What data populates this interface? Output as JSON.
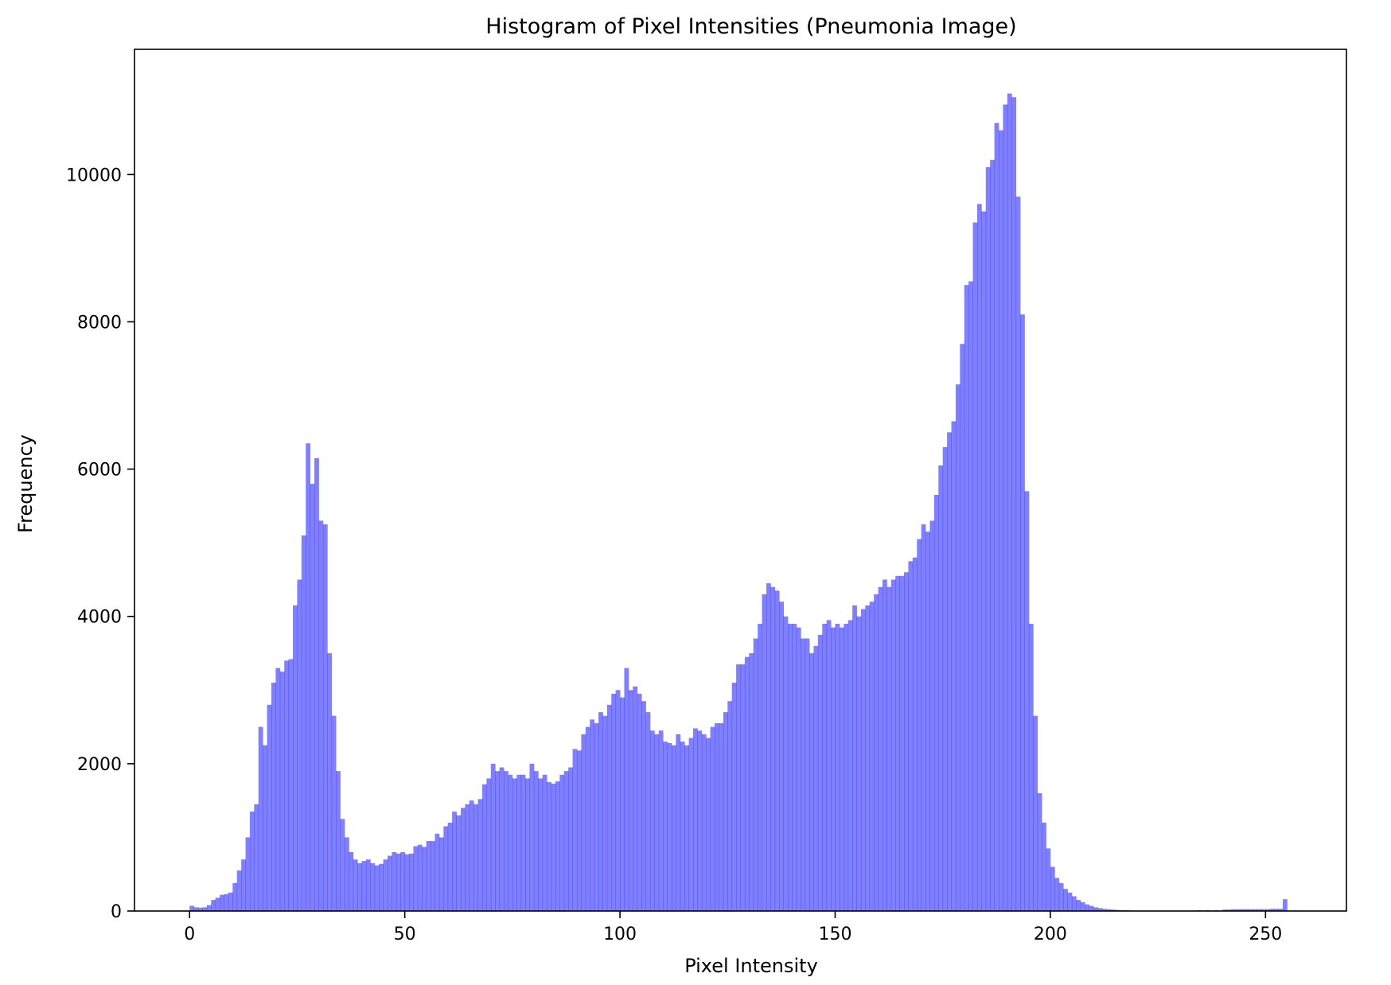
{
  "chart_data": {
    "type": "bar",
    "title": "Histogram of Pixel Intensities (Pneumonia Image)",
    "xlabel": "Pixel Intensity",
    "ylabel": "Frequency",
    "xlim": [
      -12.8,
      268.8
    ],
    "ylim": [
      0,
      11700
    ],
    "grid": false,
    "bar_color": "#0000ff",
    "bar_opacity": 0.5,
    "bin_width": 1,
    "x_ticks": [
      0,
      50,
      100,
      150,
      200,
      250
    ],
    "y_ticks": [
      0,
      2000,
      4000,
      6000,
      8000,
      10000
    ],
    "x_tick_labels": [
      "0",
      "50",
      "100",
      "150",
      "200",
      "250"
    ],
    "y_tick_labels": [
      "0",
      "2000",
      "4000",
      "6000",
      "8000",
      "10000"
    ],
    "x_start": 0,
    "values": [
      70,
      50,
      45,
      50,
      80,
      150,
      180,
      220,
      230,
      250,
      380,
      550,
      700,
      1000,
      1350,
      1450,
      2500,
      2250,
      2800,
      3100,
      3300,
      3250,
      3400,
      3420,
      4150,
      4500,
      5100,
      6350,
      5800,
      6150,
      5300,
      5250,
      3500,
      2650,
      1900,
      1250,
      1000,
      800,
      700,
      650,
      680,
      700,
      650,
      620,
      640,
      700,
      750,
      800,
      780,
      800,
      770,
      780,
      880,
      900,
      870,
      950,
      950,
      1050,
      1000,
      1150,
      1200,
      1350,
      1300,
      1400,
      1450,
      1500,
      1450,
      1520,
      1720,
      1800,
      2000,
      1900,
      1950,
      1900,
      1850,
      1800,
      1850,
      1850,
      1800,
      2000,
      1900,
      1800,
      1850,
      1750,
      1730,
      1760,
      1850,
      1900,
      1950,
      2200,
      2180,
      2400,
      2500,
      2600,
      2550,
      2700,
      2650,
      2800,
      2950,
      3000,
      2900,
      3300,
      3000,
      3050,
      2950,
      2850,
      2700,
      2450,
      2400,
      2450,
      2300,
      2280,
      2250,
      2400,
      2300,
      2250,
      2350,
      2480,
      2450,
      2400,
      2350,
      2500,
      2550,
      2550,
      2700,
      2850,
      3100,
      3350,
      3350,
      3450,
      3500,
      3700,
      3900,
      4300,
      4450,
      4400,
      4350,
      4200,
      4000,
      3900,
      3900,
      3850,
      3700,
      3700,
      3500,
      3600,
      3750,
      3900,
      3950,
      3850,
      3900,
      3850,
      3900,
      3950,
      4150,
      4000,
      4100,
      4150,
      4200,
      4300,
      4400,
      4500,
      4400,
      4500,
      4550,
      4550,
      4600,
      4750,
      4800,
      5050,
      5250,
      5150,
      5300,
      5650,
      6050,
      6300,
      6500,
      6650,
      7150,
      7700,
      8500,
      8550,
      9350,
      9600,
      9500,
      10100,
      10200,
      10700,
      10600,
      10950,
      11100,
      11050,
      9700,
      8100,
      5700,
      3900,
      2650,
      1600,
      1200,
      850,
      600,
      450,
      380,
      300,
      250,
      200,
      150,
      120,
      90,
      70,
      50,
      40,
      30,
      25,
      20,
      15,
      10,
      10,
      8,
      5,
      5,
      5,
      5,
      5,
      5,
      5,
      5,
      5,
      5,
      5,
      5,
      5,
      5,
      5,
      10,
      5,
      10,
      5,
      10,
      5,
      20,
      20,
      25,
      25,
      25,
      25,
      25,
      25,
      25,
      25,
      25,
      30,
      30,
      30,
      160
    ]
  }
}
